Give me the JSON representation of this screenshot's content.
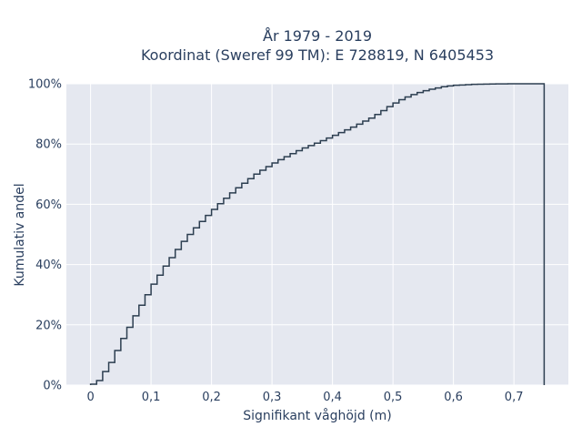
{
  "chart_data": {
    "type": "step",
    "title": "År 1979 - 2019",
    "subtitle": "Koordinat (Sweref 99 TM): E 728819, N 6405453",
    "xlabel": "Signifikant våghöjd (m)",
    "ylabel": "Kumulativ andel",
    "xlim": [
      -0.04,
      0.79
    ],
    "ylim": [
      0,
      100
    ],
    "x_ticks": [
      0,
      0.1,
      0.2,
      0.3,
      0.4,
      0.5,
      0.6,
      0.7
    ],
    "x_tick_labels": [
      "0",
      "0,1",
      "0,2",
      "0,3",
      "0,4",
      "0,5",
      "0,6",
      "0,7"
    ],
    "y_ticks": [
      0,
      20,
      40,
      60,
      80,
      100
    ],
    "y_tick_labels": [
      "0%",
      "20%",
      "40%",
      "60%",
      "80%",
      "100%"
    ],
    "grid": true,
    "plot_bg": "#e5e8f0",
    "line_color": "#2c3e50",
    "series": [
      {
        "x": [
          0.0,
          0.01,
          0.02,
          0.03,
          0.04,
          0.05,
          0.06,
          0.07,
          0.08,
          0.09,
          0.1,
          0.11,
          0.12,
          0.13,
          0.14,
          0.15,
          0.16,
          0.17,
          0.18,
          0.19,
          0.2,
          0.21,
          0.22,
          0.23,
          0.24,
          0.25,
          0.26,
          0.27,
          0.28,
          0.29,
          0.3,
          0.31,
          0.32,
          0.33,
          0.34,
          0.35,
          0.36,
          0.37,
          0.38,
          0.39,
          0.4,
          0.41,
          0.42,
          0.43,
          0.44,
          0.45,
          0.46,
          0.47,
          0.48,
          0.49,
          0.5,
          0.51,
          0.52,
          0.53,
          0.54,
          0.55,
          0.56,
          0.57,
          0.58,
          0.59,
          0.6,
          0.61,
          0.62,
          0.63,
          0.64,
          0.65,
          0.66,
          0.67,
          0.68,
          0.69,
          0.7,
          0.75
        ],
        "y": [
          0.3,
          1.5,
          4.5,
          7.5,
          11.5,
          15.5,
          19.2,
          23,
          26.5,
          30,
          33.5,
          36.5,
          39.5,
          42.3,
          45,
          47.7,
          50,
          52.2,
          54.3,
          56.3,
          58.3,
          60.2,
          62,
          63.8,
          65.5,
          67,
          68.5,
          70,
          71.3,
          72.5,
          73.7,
          74.8,
          75.8,
          76.8,
          77.8,
          78.7,
          79.5,
          80.3,
          81.1,
          82,
          82.9,
          83.8,
          84.7,
          85.6,
          86.6,
          87.6,
          88.6,
          89.8,
          91.1,
          92.4,
          93.6,
          94.7,
          95.6,
          96.4,
          97.1,
          97.7,
          98.2,
          98.6,
          99,
          99.3,
          99.5,
          99.6,
          99.7,
          99.8,
          99.85,
          99.9,
          99.93,
          99.96,
          99.98,
          99.99,
          100,
          100
        ]
      }
    ]
  }
}
